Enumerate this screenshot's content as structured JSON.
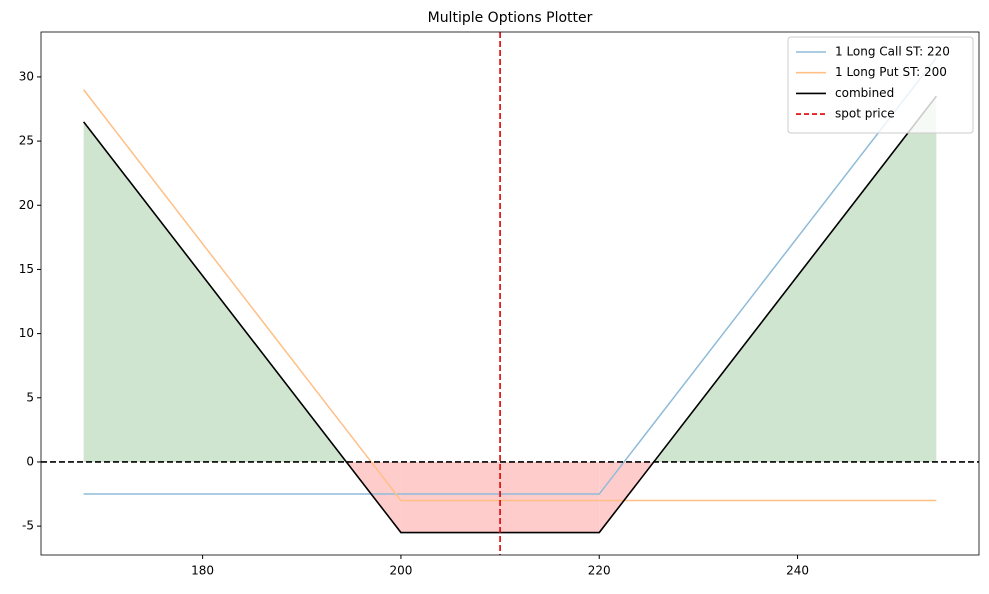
{
  "chart_data": {
    "type": "line",
    "title": "Multiple Options Plotter",
    "x": [
      168,
      200,
      220,
      254
    ],
    "series": [
      {
        "name": "1 Long Call ST: 220",
        "color": "#8fbbd9",
        "values": [
          -2.5,
          -2.5,
          -2.5,
          31.5
        ]
      },
      {
        "name": "1 Long Put ST: 200",
        "color": "#ffbf86",
        "values": [
          29,
          -3,
          -3,
          -3
        ]
      },
      {
        "name": "combined",
        "color": "#000000",
        "values": [
          26.5,
          -5.5,
          -5.5,
          28.5
        ]
      }
    ],
    "spot": {
      "name": "spot price",
      "value": 210,
      "color": "#e00000"
    },
    "zero_line": 0,
    "fill": {
      "positive_color": "#cfe5cf",
      "negative_color": "#ffcccc"
    },
    "xlim": [
      163.7,
      258.3
    ],
    "ylim": [
      -7.25,
      33.5
    ],
    "xticks": [
      180,
      200,
      220,
      240
    ],
    "yticks": [
      -5,
      0,
      5,
      10,
      15,
      20,
      25,
      30
    ],
    "legend": "upper right"
  }
}
